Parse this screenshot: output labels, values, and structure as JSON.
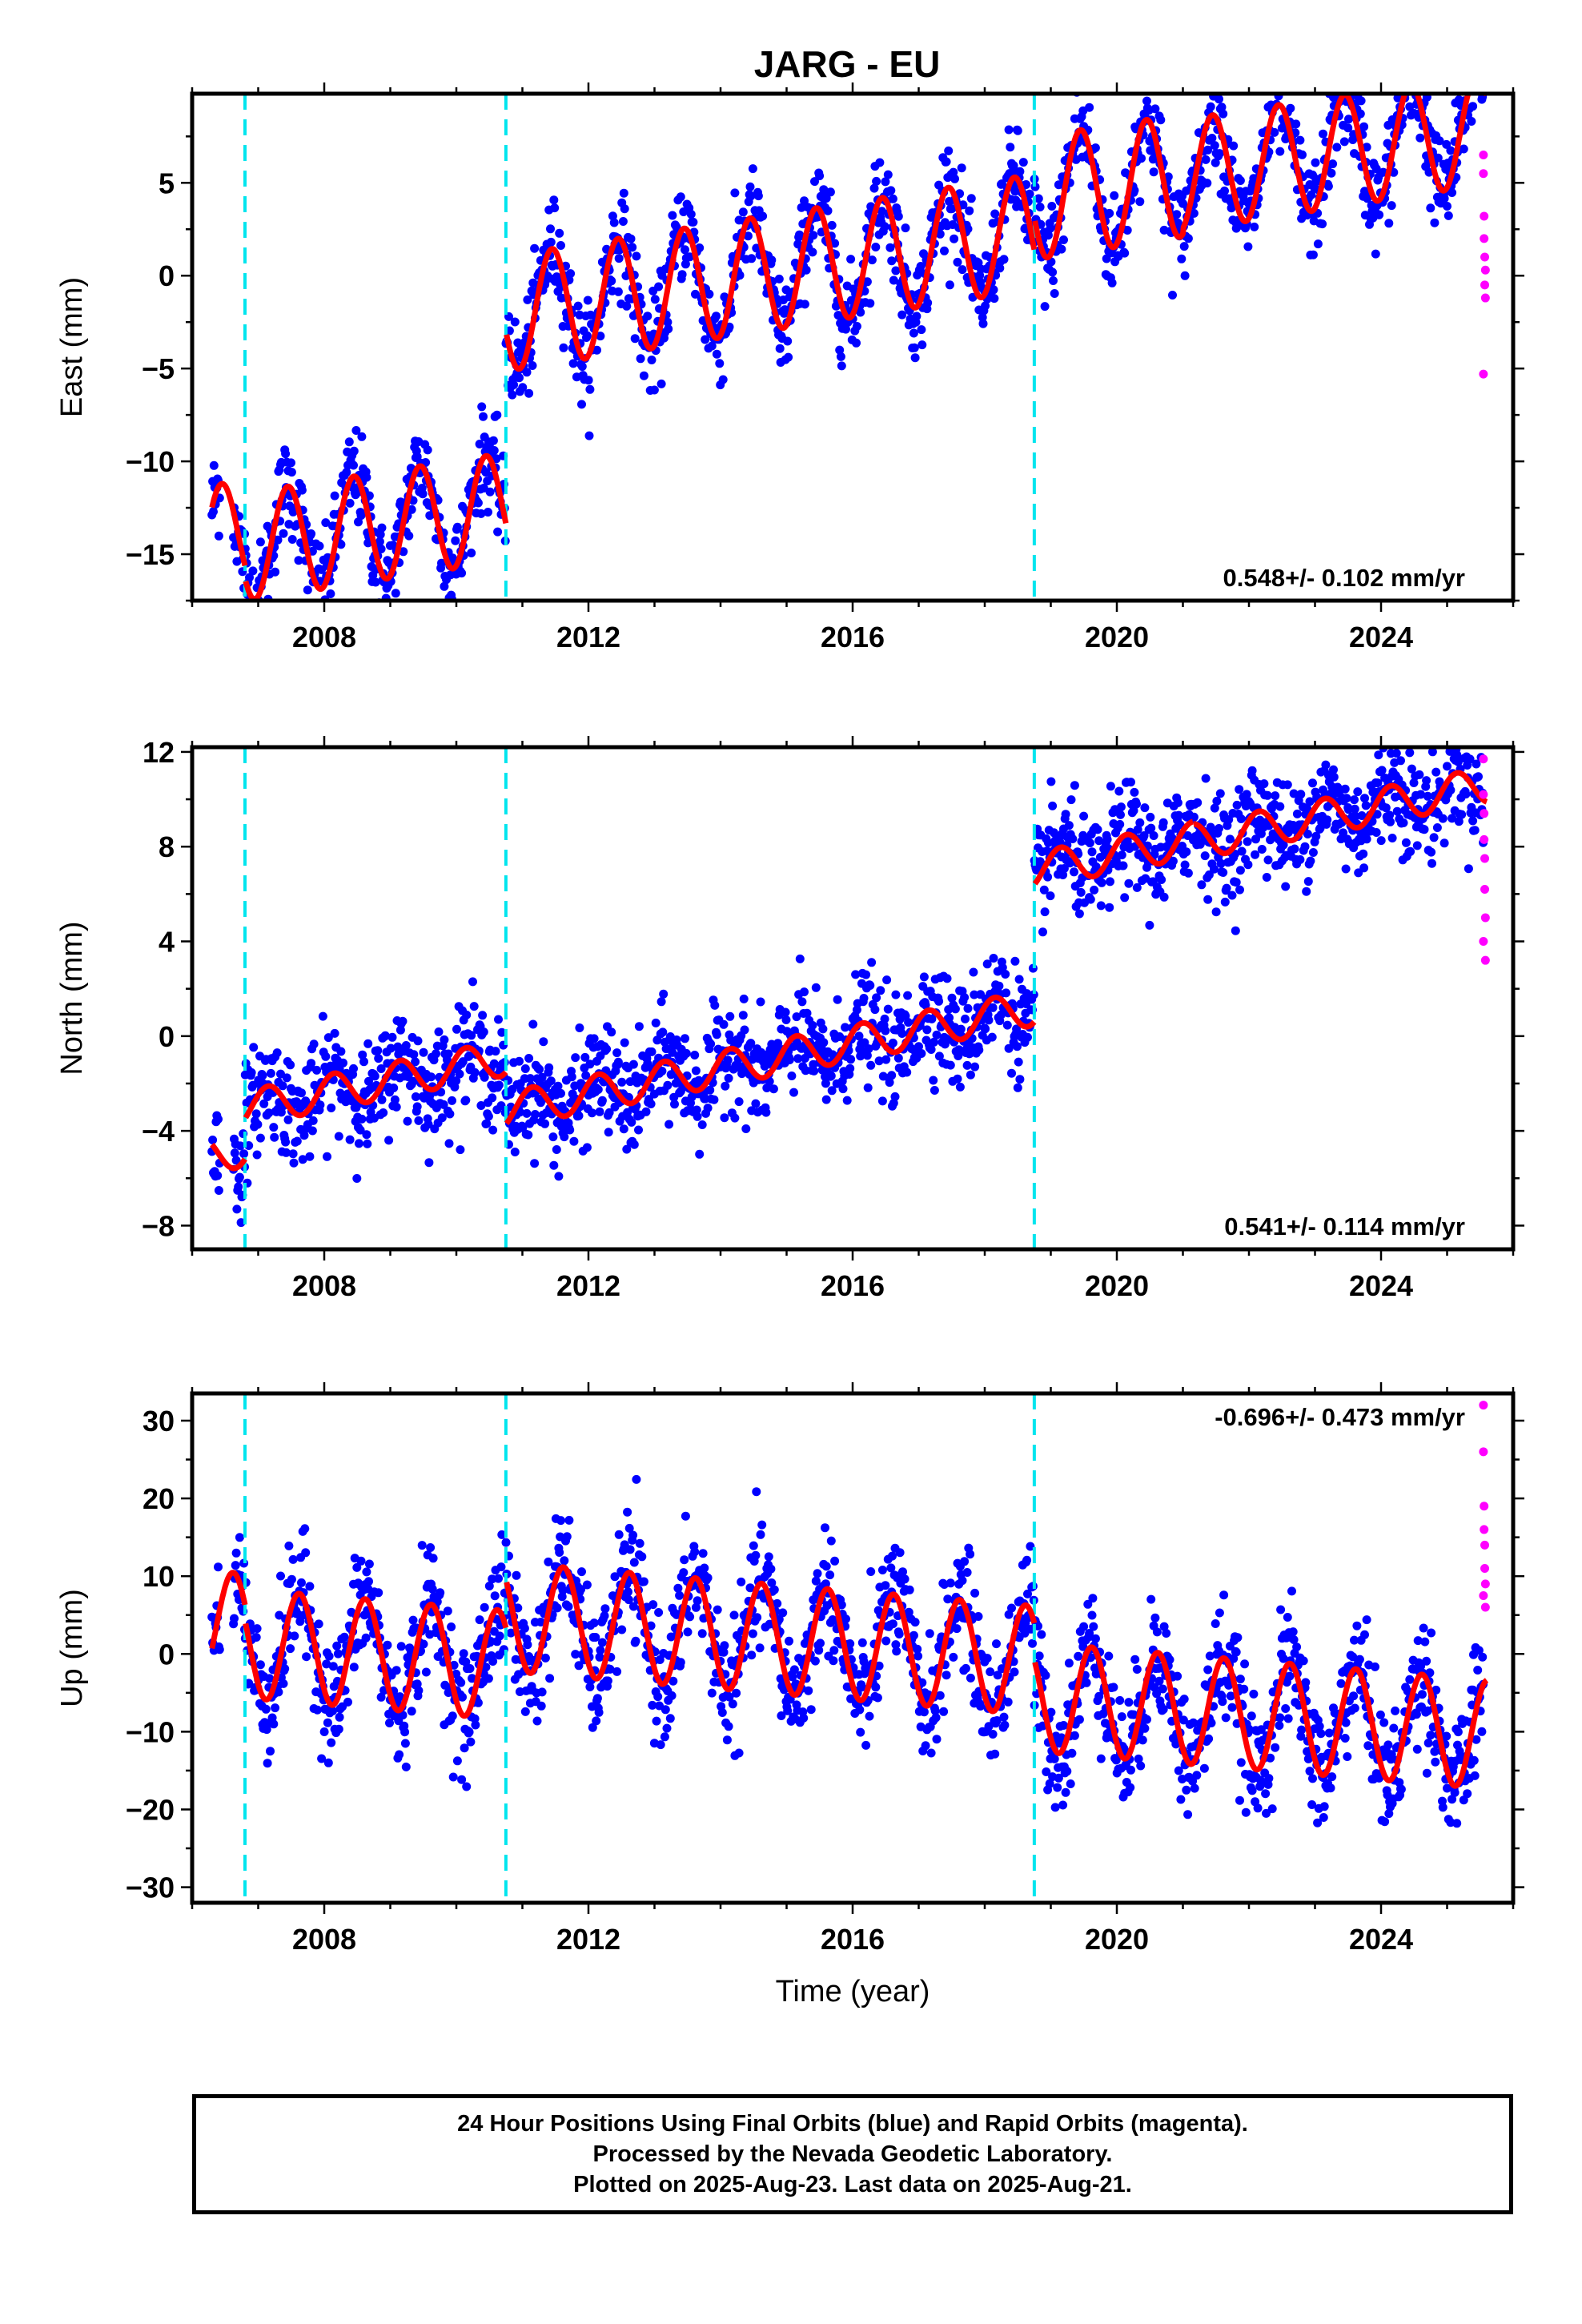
{
  "title": "JARG - EU",
  "footer": {
    "line1": "24 Hour Positions Using Final Orbits (blue) and Rapid Orbits (magenta).",
    "line2": "Processed by the Nevada Geodetic Laboratory.",
    "line3": "Plotted on 2025-Aug-23. Last data on 2025-Aug-21."
  },
  "colors": {
    "final_orbits": "#0000ff",
    "rapid_orbits": "#ff00ff",
    "model": "#ff0000",
    "discontinuity": "#00e5ee"
  },
  "chart_data": [
    {
      "type": "scatter",
      "component": "east",
      "ylabel": "East (mm)",
      "ylim": [
        -17.5,
        9.8
      ],
      "xlim": [
        2006.0,
        2026.0
      ],
      "yticks": [
        -15,
        -10,
        -5,
        0,
        5
      ],
      "xticks": [
        2008,
        2012,
        2016,
        2020,
        2024
      ],
      "rate_label": "0.548+/- 0.102 mm/yr",
      "rate_position": "bottom-right",
      "discontinuities": [
        2006.8,
        2010.75,
        2018.75
      ],
      "model": {
        "offsets": [
          [
            2006.3,
            2006.8,
            -10.5
          ],
          [
            2006.8,
            2010.75,
            -11.2
          ],
          [
            2010.75,
            2018.75,
            -0.8
          ],
          [
            2018.75,
            2025.6,
            1.0
          ]
        ],
        "trend_per_year": 0.55,
        "trend_ref_year": 2013,
        "amplitudes": [
          [
            2006.3,
            2010.75,
            2.9
          ],
          [
            2010.75,
            2018.75,
            3.1
          ],
          [
            2018.75,
            2021.0,
            3.3
          ],
          [
            2021.0,
            2025.6,
            3.0
          ]
        ],
        "phase_peak": 0.45
      },
      "scatter_noise": 1.3,
      "rapid_points": [
        [
          2025.55,
          6.5
        ],
        [
          2025.55,
          5.5
        ],
        [
          2025.56,
          3.2
        ],
        [
          2025.56,
          2.0
        ],
        [
          2025.57,
          1.0
        ],
        [
          2025.57,
          -0.5
        ],
        [
          2025.58,
          -1.2
        ],
        [
          2025.55,
          -5.3
        ],
        [
          2025.58,
          0.3
        ]
      ]
    },
    {
      "type": "scatter",
      "component": "north",
      "ylabel": "North (mm)",
      "ylim": [
        -9.0,
        12.2
      ],
      "xlim": [
        2006.0,
        2026.0
      ],
      "yticks": [
        -8,
        -4,
        0,
        4,
        8,
        12
      ],
      "xticks": [
        2008,
        2012,
        2016,
        2020,
        2024
      ],
      "rate_label": "0.541+/- 0.114 mm/yr",
      "rate_position": "bottom-right",
      "discontinuities": [
        2006.8,
        2010.75,
        2018.75
      ],
      "model": {
        "offsets": [
          [
            2006.3,
            2006.8,
            -1.4
          ],
          [
            2006.8,
            2010.75,
            0.3
          ],
          [
            2010.75,
            2018.75,
            -1.9
          ],
          [
            2018.75,
            2021.15,
            3.9
          ],
          [
            2021.15,
            2025.6,
            3.8
          ]
        ],
        "trend_per_year": 0.54,
        "trend_ref_year": 2013,
        "amplitudes": [
          [
            2006.3,
            2025.6,
            0.75
          ]
        ],
        "phase_peak": 0.15
      },
      "scatter_noise": 1.1,
      "rapid_points": [
        [
          2025.55,
          11.7
        ],
        [
          2025.55,
          10.2
        ],
        [
          2025.56,
          9.4
        ],
        [
          2025.56,
          8.3
        ],
        [
          2025.57,
          7.5
        ],
        [
          2025.57,
          6.2
        ],
        [
          2025.58,
          5.0
        ],
        [
          2025.55,
          4.0
        ],
        [
          2025.58,
          3.2
        ]
      ]
    },
    {
      "type": "scatter",
      "component": "up",
      "ylabel": "Up (mm)",
      "xlabel": "Time (year)",
      "ylim": [
        -32.0,
        33.5
      ],
      "xlim": [
        2006.0,
        2026.0
      ],
      "yticks": [
        -30,
        -20,
        -10,
        0,
        10,
        20,
        30
      ],
      "xticks": [
        2008,
        2012,
        2016,
        2020,
        2024
      ],
      "rate_label": "-0.696+/- 0.473 mm/yr",
      "rate_position": "top-right",
      "discontinuities": [
        2006.8,
        2010.75,
        2018.75
      ],
      "model": {
        "offsets": [
          [
            2006.3,
            2006.8,
            -1.0
          ],
          [
            2006.8,
            2010.75,
            -3.0
          ],
          [
            2010.75,
            2018.75,
            3.2
          ],
          [
            2018.75,
            2025.6,
            -1.5
          ]
        ],
        "trend_per_year": -0.7,
        "trend_ref_year": 2013,
        "amplitudes": [
          [
            2006.3,
            2025.6,
            7.0
          ]
        ],
        "phase_peak": 0.62
      },
      "scatter_noise": 3.8,
      "rapid_points": [
        [
          2025.55,
          32.0
        ],
        [
          2025.55,
          26.0
        ],
        [
          2025.56,
          19.0
        ],
        [
          2025.56,
          16.0
        ],
        [
          2025.57,
          14.0
        ],
        [
          2025.57,
          11.0
        ],
        [
          2025.58,
          9.0
        ],
        [
          2025.55,
          7.5
        ],
        [
          2025.58,
          6.0
        ]
      ]
    }
  ]
}
